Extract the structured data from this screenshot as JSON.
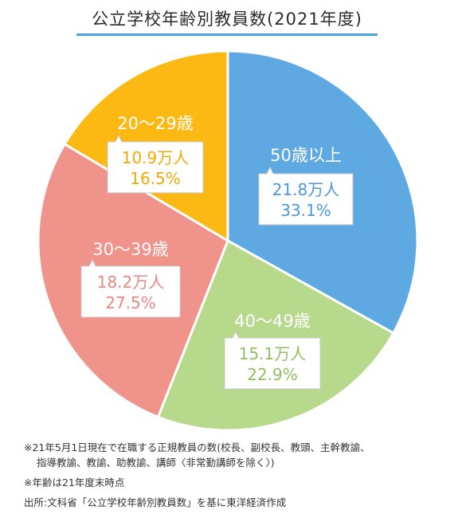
{
  "title": "公立学校年齢別教員数(2021年度)",
  "colors": {
    "title_underline": "#4aa3df",
    "label_box_stroke": "#c8c8c8"
  },
  "chart_data": {
    "type": "pie",
    "title": "公立学校年齢別教員数(2021年度)",
    "slices": [
      {
        "label": "50歳以上",
        "count": "21.8万人",
        "value": 33.1,
        "percent": "33.1%",
        "color": "#5fa9e3",
        "text_color": "#4a98dc"
      },
      {
        "label": "40〜49歳",
        "count": "15.1万人",
        "value": 22.9,
        "percent": "22.9%",
        "color": "#b7d98c",
        "text_color": "#8fc15f"
      },
      {
        "label": "30〜39歳",
        "count": "18.2万人",
        "value": 27.5,
        "percent": "27.5%",
        "color": "#ef938b",
        "text_color": "#e88880"
      },
      {
        "label": "20〜29歳",
        "count": "10.9万人",
        "value": 16.5,
        "percent": "16.5%",
        "color": "#fdb913",
        "text_color": "#f5a800"
      }
    ]
  },
  "notes": {
    "note_1": "※21年5月1日現在で在職する正規教員の数(校長、副校長、教頭、主幹教諭、　指導教諭、教諭、助教諭、講師〈非常勤講師を除く〉)",
    "note_2": "※年齢は21年度末時点",
    "source": "出所:文科省「公立学校年齢別教員数」を基に東洋経済作成"
  }
}
